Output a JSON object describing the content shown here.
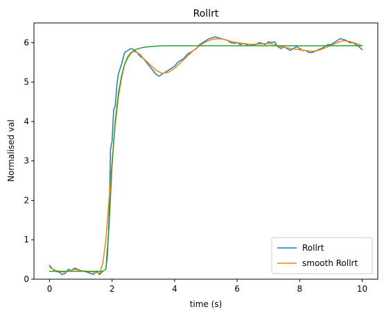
{
  "chart_data": {
    "type": "line",
    "title": "Rollrt",
    "xlabel": "time (s)",
    "ylabel": "Normalised val",
    "xlim": [
      -0.5,
      10.5
    ],
    "ylim": [
      0,
      6.5
    ],
    "xticks": [
      0,
      2,
      4,
      6,
      8,
      10
    ],
    "yticks": [
      0,
      1,
      2,
      3,
      4,
      5,
      6
    ],
    "grid": false,
    "legend_position": "lower-right",
    "series": [
      {
        "name": "Rollrt",
        "color": "#1f77b4",
        "in_legend": true,
        "x": [
          0,
          0.1,
          0.2,
          0.3,
          0.4,
          0.5,
          0.6,
          0.7,
          0.8,
          0.9,
          1.0,
          1.1,
          1.2,
          1.3,
          1.4,
          1.5,
          1.6,
          1.7,
          1.8,
          1.85,
          1.9,
          1.95,
          2.0,
          2.05,
          2.1,
          2.15,
          2.2,
          2.3,
          2.4,
          2.5,
          2.6,
          2.7,
          2.8,
          2.9,
          3.0,
          3.1,
          3.2,
          3.3,
          3.4,
          3.5,
          3.6,
          3.7,
          3.8,
          3.9,
          4.0,
          4.1,
          4.2,
          4.3,
          4.4,
          4.5,
          4.6,
          4.7,
          4.8,
          4.9,
          5.0,
          5.1,
          5.2,
          5.3,
          5.4,
          5.5,
          5.6,
          5.7,
          5.8,
          5.9,
          6.0,
          6.1,
          6.2,
          6.3,
          6.4,
          6.5,
          6.6,
          6.7,
          6.8,
          6.9,
          7.0,
          7.1,
          7.2,
          7.3,
          7.4,
          7.5,
          7.6,
          7.7,
          7.8,
          7.9,
          8.0,
          8.1,
          8.2,
          8.3,
          8.4,
          8.5,
          8.6,
          8.7,
          8.8,
          8.9,
          9.0,
          9.1,
          9.2,
          9.3,
          9.4,
          9.5,
          9.6,
          9.7,
          9.8,
          9.9,
          10.0
        ],
        "y": [
          0.35,
          0.25,
          0.2,
          0.18,
          0.12,
          0.15,
          0.25,
          0.22,
          0.28,
          0.25,
          0.22,
          0.2,
          0.18,
          0.15,
          0.12,
          0.2,
          0.12,
          0.2,
          0.25,
          0.6,
          1.5,
          3.3,
          3.5,
          4.3,
          4.4,
          4.9,
          5.2,
          5.45,
          5.75,
          5.8,
          5.85,
          5.82,
          5.75,
          5.65,
          5.6,
          5.5,
          5.4,
          5.3,
          5.2,
          5.15,
          5.2,
          5.25,
          5.3,
          5.35,
          5.4,
          5.5,
          5.55,
          5.6,
          5.7,
          5.75,
          5.8,
          5.85,
          5.95,
          6.0,
          6.05,
          6.1,
          6.12,
          6.15,
          6.12,
          6.1,
          6.08,
          6.05,
          6.0,
          5.98,
          6.0,
          5.95,
          5.98,
          5.95,
          5.92,
          5.95,
          5.95,
          6.0,
          5.98,
          5.95,
          6.02,
          6.0,
          6.02,
          5.9,
          5.85,
          5.9,
          5.85,
          5.8,
          5.85,
          5.9,
          5.85,
          5.8,
          5.8,
          5.75,
          5.75,
          5.78,
          5.82,
          5.85,
          5.9,
          5.95,
          5.95,
          6.0,
          6.05,
          6.1,
          6.08,
          6.05,
          6.0,
          6.0,
          5.95,
          5.9,
          5.82
        ]
      },
      {
        "name": "smooth Rollrt",
        "color": "#ff7f0e",
        "in_legend": true,
        "x": [
          0,
          0.2,
          0.4,
          0.6,
          0.8,
          1.0,
          1.2,
          1.4,
          1.6,
          1.7,
          1.8,
          1.9,
          2.0,
          2.1,
          2.2,
          2.3,
          2.4,
          2.5,
          2.6,
          2.7,
          2.8,
          2.9,
          3.0,
          3.2,
          3.4,
          3.6,
          3.8,
          4.0,
          4.2,
          4.4,
          4.6,
          4.8,
          5.0,
          5.2,
          5.4,
          5.6,
          5.8,
          6.0,
          6.2,
          6.4,
          6.6,
          6.8,
          7.0,
          7.2,
          7.4,
          7.6,
          7.8,
          8.0,
          8.2,
          8.4,
          8.6,
          8.8,
          9.0,
          9.2,
          9.4,
          9.6,
          9.8,
          10.0
        ],
        "y": [
          0.3,
          0.22,
          0.18,
          0.2,
          0.25,
          0.22,
          0.2,
          0.18,
          0.15,
          0.4,
          1.0,
          2.0,
          3.0,
          3.9,
          4.6,
          5.1,
          5.45,
          5.65,
          5.75,
          5.78,
          5.75,
          5.7,
          5.6,
          5.45,
          5.3,
          5.22,
          5.25,
          5.35,
          5.5,
          5.65,
          5.8,
          5.92,
          6.02,
          6.08,
          6.1,
          6.08,
          6.03,
          6.0,
          5.98,
          5.96,
          5.96,
          5.97,
          5.98,
          5.95,
          5.9,
          5.87,
          5.84,
          5.82,
          5.8,
          5.78,
          5.8,
          5.86,
          5.93,
          6.0,
          6.05,
          6.03,
          5.98,
          5.92
        ]
      },
      {
        "name": "",
        "color": "#2ca02c",
        "in_legend": false,
        "x": [
          0,
          0.5,
          1.0,
          1.5,
          1.7,
          1.8,
          1.9,
          2.0,
          2.1,
          2.2,
          2.3,
          2.4,
          2.5,
          2.6,
          2.7,
          2.8,
          2.9,
          3.0,
          3.2,
          3.4,
          3.6,
          3.8,
          4.0,
          4.5,
          5.0,
          6.0,
          7.0,
          8.0,
          9.0,
          10.0
        ],
        "y": [
          0.2,
          0.2,
          0.2,
          0.2,
          0.2,
          0.25,
          1.3,
          2.9,
          4.0,
          4.7,
          5.15,
          5.45,
          5.62,
          5.73,
          5.8,
          5.84,
          5.86,
          5.88,
          5.9,
          5.91,
          5.92,
          5.92,
          5.92,
          5.92,
          5.92,
          5.92,
          5.92,
          5.92,
          5.92,
          5.92
        ]
      }
    ]
  }
}
